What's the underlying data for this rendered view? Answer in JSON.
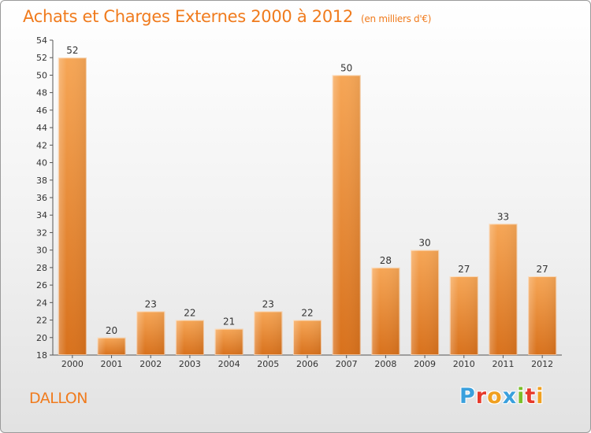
{
  "title": "Achats et Charges Externes 2000 à 2012",
  "subtitle": "(en milliers d'€)",
  "commune": "DALLON",
  "logo": {
    "letters": [
      "P",
      "r",
      "o",
      "x",
      "i",
      "t",
      "i"
    ],
    "colors": [
      "#3aa0dd",
      "#e63a2c",
      "#f0a020",
      "#3aa0dd",
      "#7bbf2a",
      "#e63a2c",
      "#f0a020"
    ]
  },
  "colors": {
    "accent": "#f07b1d",
    "bar_light": "#f6a656",
    "bar_dark": "#d8711c"
  },
  "chart_data": {
    "type": "bar",
    "title": "Achats et Charges Externes 2000 à 2012",
    "ylabel": "(en milliers d'€)",
    "xlabel": "",
    "categories": [
      "2000",
      "2001",
      "2002",
      "2003",
      "2004",
      "2005",
      "2006",
      "2007",
      "2008",
      "2009",
      "2010",
      "2011",
      "2012"
    ],
    "values": [
      52,
      20,
      23,
      22,
      21,
      23,
      22,
      50,
      28,
      30,
      27,
      33,
      27
    ],
    "ylim": [
      18,
      54
    ],
    "ytick_step": 2,
    "grid": false
  }
}
